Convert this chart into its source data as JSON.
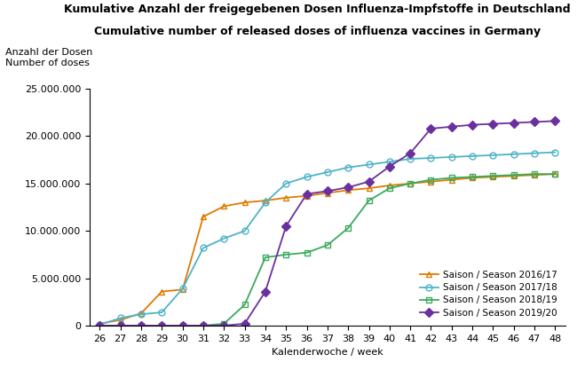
{
  "title_line1": "Kumulative Anzahl der freigegebenen Dosen Influenza-Impfstoffe in Deutschland",
  "title_line2": "Cumulative number of released doses of influenza vaccines in Germany",
  "ylabel_line1": "Anzahl der Dosen",
  "ylabel_line2": "Number of doses",
  "xlabel": "Kalenderwoche / week",
  "ylim": [
    0,
    25000000
  ],
  "yticks": [
    0,
    5000000,
    10000000,
    15000000,
    20000000,
    25000000
  ],
  "xticks": [
    26,
    27,
    28,
    29,
    30,
    31,
    32,
    33,
    34,
    35,
    36,
    37,
    38,
    39,
    40,
    41,
    42,
    43,
    44,
    45,
    46,
    47,
    48
  ],
  "seasons": {
    "2016/17": {
      "color": "#e07b00",
      "marker": "^",
      "label": "Saison / Season 2016/17",
      "weeks": [
        26,
        27,
        28,
        29,
        30,
        31,
        32,
        33,
        34,
        35,
        36,
        37,
        38,
        39,
        40,
        41,
        42,
        43,
        44,
        45,
        46,
        47,
        48
      ],
      "values": [
        200000,
        600000,
        1300000,
        3600000,
        3800000,
        11500000,
        12600000,
        13000000,
        13200000,
        13500000,
        13700000,
        14000000,
        14300000,
        14500000,
        14800000,
        15000000,
        15200000,
        15400000,
        15600000,
        15700000,
        15800000,
        15900000,
        16000000
      ]
    },
    "2017/18": {
      "color": "#4db3c8",
      "marker": "o",
      "label": "Saison / Season 2017/18",
      "weeks": [
        26,
        27,
        28,
        29,
        30,
        31,
        32,
        33,
        34,
        35,
        36,
        37,
        38,
        39,
        40,
        41,
        42,
        43,
        44,
        45,
        46,
        47,
        48
      ],
      "values": [
        100000,
        800000,
        1200000,
        1400000,
        3900000,
        8200000,
        9200000,
        10000000,
        13000000,
        15000000,
        15700000,
        16200000,
        16700000,
        17000000,
        17300000,
        17600000,
        17700000,
        17800000,
        17900000,
        18000000,
        18100000,
        18200000,
        18300000
      ]
    },
    "2018/19": {
      "color": "#3aaa5c",
      "marker": "s",
      "label": "Saison / Season 2018/19",
      "weeks": [
        26,
        27,
        28,
        29,
        30,
        31,
        32,
        33,
        34,
        35,
        36,
        37,
        38,
        39,
        40,
        41,
        42,
        43,
        44,
        45,
        46,
        47,
        48
      ],
      "values": [
        0,
        0,
        0,
        0,
        0,
        0,
        200000,
        2200000,
        7200000,
        7500000,
        7700000,
        8500000,
        10300000,
        13200000,
        14500000,
        15000000,
        15400000,
        15600000,
        15700000,
        15800000,
        15900000,
        16000000,
        16000000
      ]
    },
    "2019/20": {
      "color": "#6b2fa0",
      "marker": "D",
      "label": "Saison / Season 2019/20",
      "weeks": [
        26,
        27,
        28,
        29,
        30,
        31,
        32,
        33,
        34,
        35,
        36,
        37,
        38,
        39,
        40,
        41,
        42,
        43,
        44,
        45,
        46,
        47,
        48
      ],
      "values": [
        0,
        0,
        0,
        0,
        0,
        0,
        0,
        200000,
        3600000,
        10500000,
        13900000,
        14200000,
        14600000,
        15200000,
        16800000,
        18200000,
        20800000,
        21000000,
        21200000,
        21300000,
        21400000,
        21500000,
        21600000
      ]
    }
  },
  "background_color": "#ffffff",
  "title_fontsize": 9,
  "label_fontsize": 8,
  "tick_fontsize": 8
}
